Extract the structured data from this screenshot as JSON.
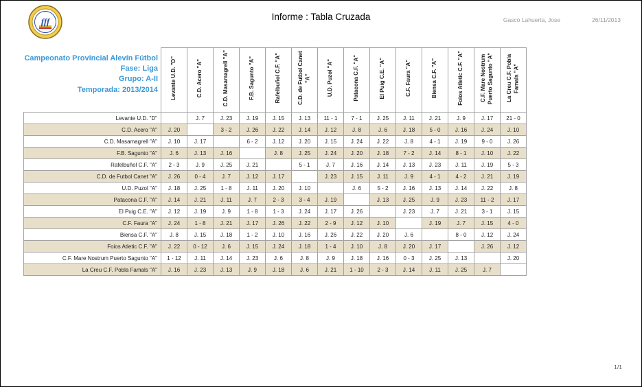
{
  "header": {
    "title": "Informe : Tabla Cruzada",
    "author": "Gascó Lahuerta, Jose",
    "date": "26/11/2013",
    "logo": "valencian-football-federation-crest"
  },
  "competition": {
    "lines": [
      "Campeonato Provincial Alevín Fútbol",
      "Fase: Liga",
      "Grupo: A-II",
      "Temporada: 2013/2014"
    ]
  },
  "footer": {
    "page_number": "1/1"
  },
  "colors": {
    "accent_blue": "#3A9AD9",
    "stripe_beige": "#E7DFC9",
    "border_gray": "#A3A3A3",
    "meta_gray": "#9A9A9A"
  },
  "table": {
    "columns": [
      "Levante U.D. \"D\"",
      "C.D. Acero \"A\"",
      "C.D. Masamagrell \"A\"",
      "F.B. Sagunto \"A\"",
      "Rafelbuñol C.F. \"A\"",
      "C.D. de Futbol Canet \"A\"",
      "U.D. Puzol \"A\"",
      "Patacona C.F. \"A\"",
      "El Puig C.E. \"A\"",
      "C.F. Faura \"A\"",
      "Biensa C.F. \"A\"",
      "Foios Atletic C.F. \"A\"",
      "C.F. Mare Nostrum Puerto Sagunto \"A\"",
      "La Creu C.F. Pobla Famals \"A\""
    ],
    "rows": [
      {
        "label": "Levante U.D. \"D\"",
        "cells": [
          "",
          "J. 7",
          "J. 23",
          "J. 19",
          "J. 15",
          "J. 13",
          "11 - 1",
          "7 - 1",
          "J. 25",
          "J. 11",
          "J. 21",
          "J. 9",
          "J. 17",
          "21 - 0"
        ]
      },
      {
        "label": "C.D. Acero \"A\"",
        "cells": [
          "J. 20",
          "",
          "3 - 2",
          "J. 26",
          "J. 22",
          "J. 14",
          "J. 12",
          "J. 8",
          "J. 6",
          "J. 18",
          "5 - 0",
          "J. 16",
          "J. 24",
          "J. 10"
        ]
      },
      {
        "label": "C.D. Masamagrell \"A\"",
        "cells": [
          "J. 10",
          "J. 17",
          "",
          "6 - 2",
          "J. 12",
          "J. 20",
          "J. 15",
          "J. 24",
          "J. 22",
          "J. 8",
          "4 - 1",
          "J. 19",
          "9 - 0",
          "J. 26"
        ]
      },
      {
        "label": "F.B. Sagunto \"A\"",
        "cells": [
          "J. 6",
          "J. 13",
          "J. 16",
          "",
          "J. 8",
          "J. 25",
          "J. 24",
          "J. 20",
          "J. 18",
          "7 - 2",
          "J. 14",
          "8 - 1",
          "J. 10",
          "J. 22"
        ]
      },
      {
        "label": "Rafelbuñol C.F. \"A\"",
        "cells": [
          "2 - 3",
          "J. 9",
          "J. 25",
          "J. 21",
          "",
          "5 - 1",
          "J. 7",
          "J. 16",
          "J. 14",
          "J. 13",
          "J. 23",
          "J. 11",
          "J. 19",
          "5 - 3"
        ]
      },
      {
        "label": "C.D. de Futbol Canet \"A\"",
        "cells": [
          "J. 26",
          "0 - 4",
          "J. 7",
          "J. 12",
          "J. 17",
          "",
          "J. 23",
          "J. 15",
          "J. 11",
          "J. 9",
          "4 - 1",
          "4 - 2",
          "J. 21",
          "J. 19"
        ]
      },
      {
        "label": "U.D. Puzol \"A\"",
        "cells": [
          "J. 18",
          "J. 25",
          "1 - 8",
          "J. 11",
          "J. 20",
          "J. 10",
          "",
          "J. 6",
          "5 - 2",
          "J. 16",
          "J. 13",
          "J. 14",
          "J. 22",
          "J. 8"
        ]
      },
      {
        "label": "Patacona C.F. \"A\"",
        "cells": [
          "J. 14",
          "J. 21",
          "J. 11",
          "J. 7",
          "2 - 3",
          "3 - 4",
          "J. 19",
          "",
          "J. 13",
          "J. 25",
          "J. 9",
          "J. 23",
          "11 - 2",
          "J. 17"
        ]
      },
      {
        "label": "El Puig C.E. \"A\"",
        "cells": [
          "J. 12",
          "J. 19",
          "J. 9",
          "1 - 8",
          "1 - 3",
          "J. 24",
          "J. 17",
          "J. 26",
          "",
          "J. 23",
          "J. 7",
          "J. 21",
          "3 - 1",
          "J. 15"
        ]
      },
      {
        "label": "C.F. Faura \"A\"",
        "cells": [
          "J. 24",
          "1 - 8",
          "J. 21",
          "J. 17",
          "J. 26",
          "J. 22",
          "2 - 9",
          "J. 12",
          "J. 10",
          "",
          "J. 19",
          "J. 7",
          "J. 15",
          "4 - 0"
        ]
      },
      {
        "label": "Biensa C.F. \"A\"",
        "cells": [
          "J. 8",
          "J. 15",
          "J. 18",
          "1 - 2",
          "J. 10",
          "J. 16",
          "J. 26",
          "J. 22",
          "J. 20",
          "J. 6",
          "",
          "8 - 0",
          "J. 12",
          "J. 24"
        ]
      },
      {
        "label": "Foios Atletic C.F. \"A\"",
        "cells": [
          "J. 22",
          "0 - 12",
          "J. 6",
          "J. 15",
          "J. 24",
          "J. 18",
          "1 - 4",
          "J. 10",
          "J. 8",
          "J. 20",
          "J. 17",
          "",
          "J. 26",
          "J. 12"
        ]
      },
      {
        "label": "C.F. Mare Nostrum Puerto Sagunto \"A\"",
        "cells": [
          "1 - 12",
          "J. 11",
          "J. 14",
          "J. 23",
          "J. 6",
          "J. 8",
          "J. 9",
          "J. 18",
          "J. 16",
          "0 - 3",
          "J. 25",
          "J. 13",
          "",
          "J. 20"
        ]
      },
      {
        "label": "La Creu C.F. Pobla Famals \"A\"",
        "cells": [
          "J. 16",
          "J. 23",
          "J. 13",
          "J. 9",
          "J. 18",
          "J. 6",
          "J. 21",
          "1 - 10",
          "2 - 3",
          "J. 14",
          "J. 11",
          "J. 25",
          "J. 7",
          ""
        ]
      }
    ]
  }
}
